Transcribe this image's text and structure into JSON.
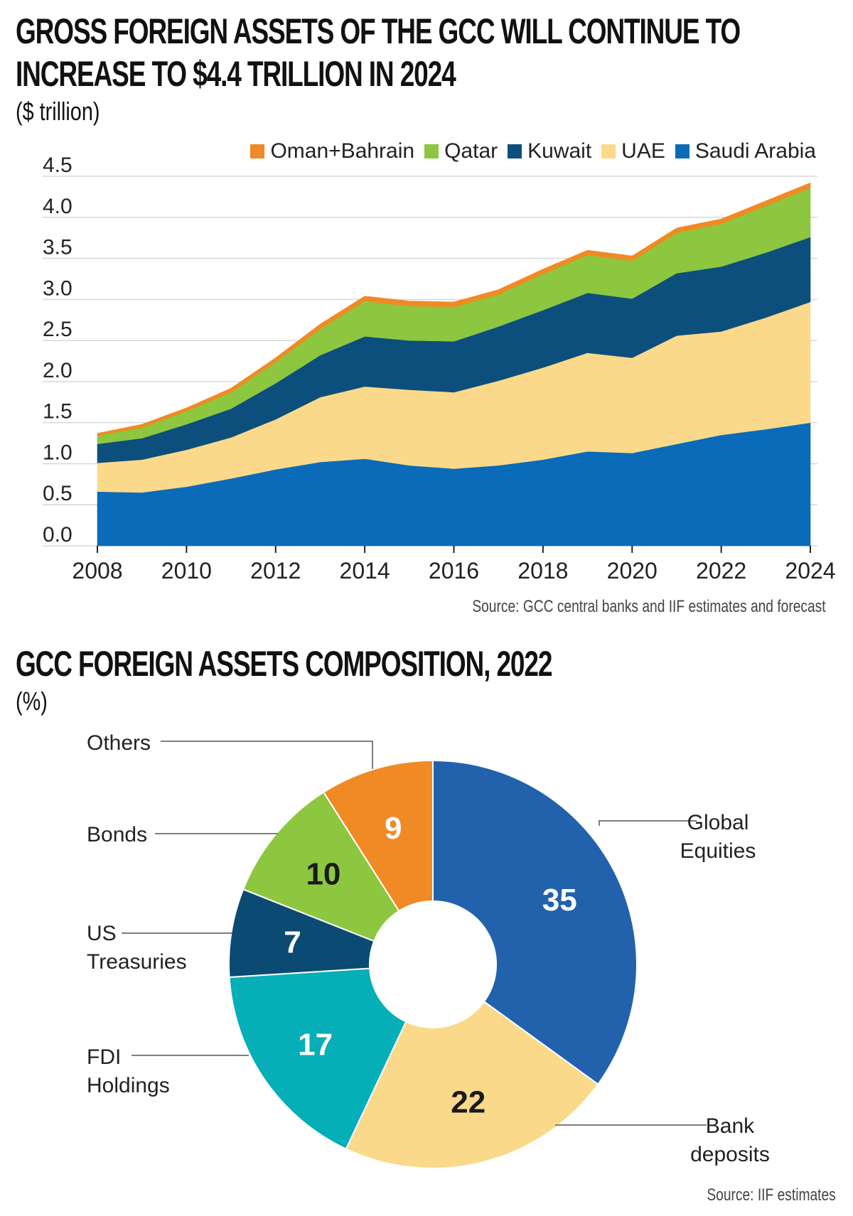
{
  "area_chart": {
    "title_line1": "GROSS FOREIGN ASSETS OF THE GCC WILL CONTINUE TO",
    "title_line2": "INCREASE TO $4.4 TRILLION IN 2024",
    "unit": "($ trillion)",
    "source": "Source: GCC central banks and IIF estimates and forecast"
  },
  "donut_chart": {
    "title": "GCC FOREIGN ASSETS COMPOSITION, 2022",
    "unit": "(%)",
    "source": "Source: IIF estimates"
  },
  "chart_data": [
    {
      "type": "area",
      "stacked": true,
      "title": "GROSS FOREIGN ASSETS OF THE GCC WILL CONTINUE TO INCREASE TO $4.4 TRILLION IN 2024",
      "ylabel": "($ trillion)",
      "ylim": [
        0,
        4.5
      ],
      "yticks": [
        "0.0",
        "0.5",
        "1.0",
        "1.5",
        "2.0",
        "2.5",
        "3.0",
        "3.5",
        "4.0",
        "4.5"
      ],
      "xlim": [
        2008,
        2024
      ],
      "xticks": [
        "2008",
        "2010",
        "2012",
        "2014",
        "2016",
        "2018",
        "2020",
        "2022",
        "2024"
      ],
      "legend_position": "top-right",
      "x": [
        2008,
        2009,
        2010,
        2011,
        2012,
        2013,
        2014,
        2015,
        2016,
        2017,
        2018,
        2019,
        2020,
        2021,
        2022,
        2023,
        2024
      ],
      "series": [
        {
          "name": "Saudi Arabia",
          "color": "#0a6bb8",
          "values": [
            0.66,
            0.65,
            0.72,
            0.82,
            0.93,
            1.02,
            1.06,
            0.98,
            0.94,
            0.98,
            1.05,
            1.15,
            1.13,
            1.24,
            1.35,
            1.42,
            1.5
          ]
        },
        {
          "name": "UAE",
          "color": "#fbd98a",
          "values": [
            0.35,
            0.4,
            0.45,
            0.5,
            0.61,
            0.79,
            0.88,
            0.92,
            0.93,
            1.03,
            1.12,
            1.2,
            1.16,
            1.32,
            1.26,
            1.36,
            1.47
          ]
        },
        {
          "name": "Kuwait",
          "color": "#0c4f7c",
          "values": [
            0.23,
            0.26,
            0.31,
            0.35,
            0.44,
            0.51,
            0.61,
            0.6,
            0.62,
            0.66,
            0.7,
            0.73,
            0.72,
            0.76,
            0.79,
            0.79,
            0.79
          ]
        },
        {
          "name": "Qatar",
          "color": "#8dc63f",
          "values": [
            0.1,
            0.13,
            0.16,
            0.2,
            0.26,
            0.32,
            0.43,
            0.42,
            0.42,
            0.39,
            0.44,
            0.46,
            0.46,
            0.49,
            0.52,
            0.57,
            0.6
          ]
        },
        {
          "name": "Oman+Bahrain",
          "color": "#f08a24",
          "values": [
            0.03,
            0.04,
            0.04,
            0.05,
            0.05,
            0.06,
            0.06,
            0.06,
            0.06,
            0.06,
            0.06,
            0.06,
            0.06,
            0.06,
            0.06,
            0.06,
            0.06
          ]
        }
      ],
      "legend_order": [
        "Oman+Bahrain",
        "Qatar",
        "Kuwait",
        "UAE",
        "Saudi Arabia"
      ]
    },
    {
      "type": "pie",
      "donut": true,
      "title": "GCC FOREIGN ASSETS COMPOSITION, 2022",
      "ylabel": "(%)",
      "slices": [
        {
          "label": "Global Equities",
          "label_lines": [
            "Global",
            "Equities"
          ],
          "value": 35,
          "display": "35",
          "color": "#2262ad",
          "text_color": "#ffffff"
        },
        {
          "label": "Bank deposits",
          "label_lines": [
            "Bank",
            "deposits"
          ],
          "value": 22,
          "display": "22",
          "color": "#fbd98a",
          "text_color": "#1a1a1a"
        },
        {
          "label": "FDI Holdings",
          "label_lines": [
            "FDI",
            "Holdings"
          ],
          "value": 17,
          "display": "17",
          "color": "#06aeb8",
          "text_color": "#ffffff"
        },
        {
          "label": "US Treasuries",
          "label_lines": [
            "US",
            "Treasuries"
          ],
          "value": 7,
          "display": "7",
          "color": "#0b4a72",
          "text_color": "#ffffff"
        },
        {
          "label": "Bonds",
          "label_lines": [
            "Bonds"
          ],
          "value": 10,
          "display": "10",
          "color": "#8dc63f",
          "text_color": "#1a1a1a"
        },
        {
          "label": "Others",
          "label_lines": [
            "Others"
          ],
          "value": 9,
          "display": "9",
          "color": "#f08a24",
          "text_color": "#ffffff"
        }
      ]
    }
  ]
}
